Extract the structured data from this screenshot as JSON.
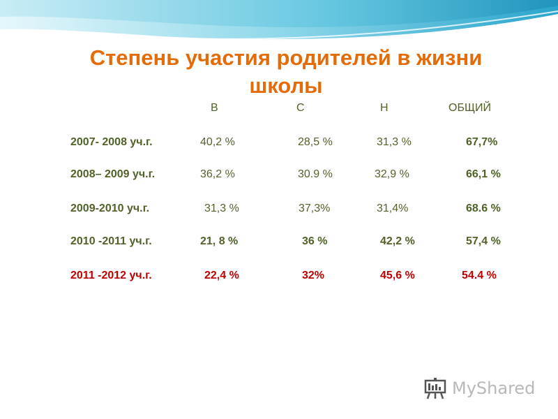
{
  "title": "Степень участия родителей в жизни школы",
  "headers": [
    "В",
    "С",
    "Н",
    "ОБЩИЙ"
  ],
  "rows": [
    {
      "label": "2007- 2008 уч.г.",
      "values": [
        "40,2 %",
        "28,5 %",
        "31,3 %",
        "67,7%"
      ]
    },
    {
      "label": "2008– 2009 уч.г.",
      "values": [
        "36,2 %",
        "30.9 %",
        "32,9 %",
        "66,1 %"
      ]
    },
    {
      "label": "2009-2010 уч.г.",
      "values": [
        "31,3 %",
        "37,3%",
        "31,4%",
        "68.6 %"
      ]
    },
    {
      "label": "2010 -2011 уч.г.",
      "values": [
        "21, 8 %",
        "36 %",
        "42,2 %",
        "57,4 %"
      ]
    },
    {
      "label": "2011 -2012 уч.г.",
      "values": [
        "22,4 %",
        "32%",
        "45,6 %",
        "54.4 %"
      ]
    }
  ],
  "logo": {
    "text": "MyShared",
    "icon": "presentation-board-icon"
  },
  "colors": {
    "title": "#e36c09",
    "text": "#4f6228",
    "highlight": "#c00000",
    "wave_light": "#d6f2f8",
    "wave_dark": "#3fb3d4"
  }
}
